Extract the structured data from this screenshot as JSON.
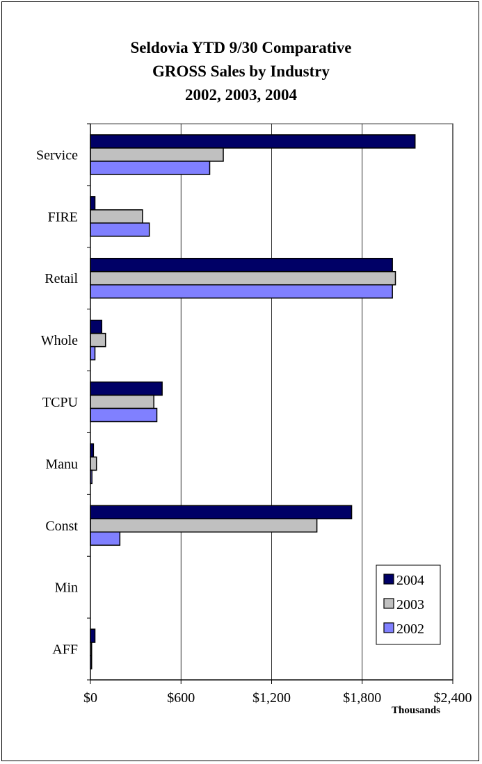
{
  "chart_data": {
    "type": "bar",
    "orientation": "horizontal",
    "title_lines": [
      "Seldovia YTD 9/30 Comparative",
      "GROSS Sales by Industry",
      "2002, 2003, 2004"
    ],
    "xlabel": "Thousands",
    "ylabel": "",
    "xlim": [
      0,
      2400
    ],
    "x_ticks": [
      0,
      600,
      1200,
      1800,
      2400
    ],
    "x_tick_labels": [
      "$0",
      "$600",
      "$1,200",
      "$1,800",
      "$2,400"
    ],
    "grid": "vertical",
    "legend_position": "bottom-right",
    "categories": [
      "Service",
      "FIRE",
      "Retail",
      "Whole",
      "TCPU",
      "Manu",
      "Const",
      "Min",
      "AFF"
    ],
    "series": [
      {
        "name": "2004",
        "color": "#000066",
        "values": [
          2150,
          30,
          2000,
          75,
          475,
          20,
          1730,
          0,
          30
        ]
      },
      {
        "name": "2003",
        "color": "#C0C0C0",
        "values": [
          880,
          345,
          2020,
          100,
          420,
          40,
          1500,
          0,
          8
        ]
      },
      {
        "name": "2002",
        "color": "#8080FF",
        "values": [
          790,
          390,
          2000,
          30,
          440,
          10,
          195,
          0,
          8
        ]
      }
    ]
  }
}
